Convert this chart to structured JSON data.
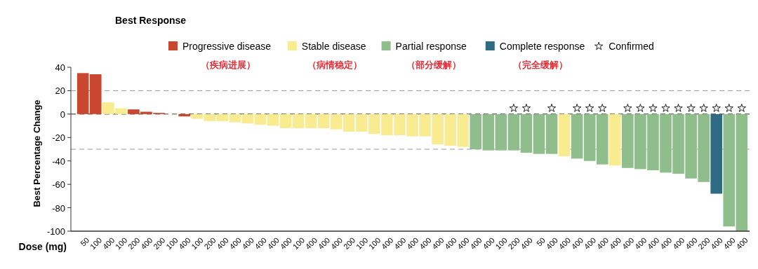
{
  "chart_data": {
    "type": "bar",
    "title": "Best Response",
    "xlabel": "Dose (mg)",
    "ylabel": "Best Percentage Change",
    "categories": [
      "50",
      "100",
      "400",
      "100",
      "200",
      "400",
      "200",
      "100",
      "400",
      "100",
      "200",
      "400",
      "400",
      "400",
      "400",
      "400",
      "400",
      "100",
      "400",
      "400",
      "400",
      "200",
      "100",
      "100",
      "400",
      "400",
      "400",
      "400",
      "400",
      "400",
      "400",
      "400",
      "400",
      "100",
      "200",
      "400",
      "50",
      "400",
      "400",
      "400",
      "400",
      "400",
      "400",
      "400",
      "400",
      "400",
      "400",
      "400",
      "400",
      "200",
      "400",
      "400",
      "400"
    ],
    "series": [
      {
        "name": "Progressive disease",
        "color": "#c9472f",
        "values": [
          35,
          34,
          null,
          null,
          4,
          2,
          1,
          null,
          -2,
          null,
          null,
          null,
          null,
          null,
          null,
          null,
          null,
          null,
          null,
          null,
          null,
          null,
          null,
          null,
          null,
          null,
          null,
          null,
          null,
          null,
          null,
          null,
          null,
          null,
          null,
          null,
          null,
          null,
          null,
          null,
          null,
          null,
          null,
          null,
          null,
          null,
          null,
          null,
          null,
          null,
          null,
          null,
          null
        ]
      },
      {
        "name": "Stable disease",
        "color": "#f9eb8f",
        "values": [
          null,
          null,
          10,
          5,
          null,
          null,
          null,
          0,
          null,
          -4,
          -6,
          -6,
          -7,
          -8,
          -9,
          -10,
          -12,
          -12,
          -12,
          -12,
          -13,
          -15,
          -15,
          -17,
          -18,
          -18,
          -19,
          -19,
          -26,
          -27,
          -28,
          null,
          null,
          null,
          null,
          null,
          null,
          null,
          -36,
          null,
          null,
          null,
          -44,
          null,
          null,
          null,
          null,
          null,
          null,
          null,
          null,
          null,
          null
        ]
      },
      {
        "name": "Partial response",
        "color": "#8fbe8c",
        "values": [
          null,
          null,
          null,
          null,
          null,
          null,
          null,
          null,
          null,
          null,
          null,
          null,
          null,
          null,
          null,
          null,
          null,
          null,
          null,
          null,
          null,
          null,
          null,
          null,
          null,
          null,
          null,
          null,
          null,
          null,
          null,
          -30,
          -31,
          -31,
          -31,
          -33,
          -34,
          -34,
          null,
          -38,
          -40,
          -43,
          null,
          -46,
          -47,
          -48,
          -50,
          -51,
          -55,
          -58,
          null,
          -96,
          -100
        ]
      },
      {
        "name": "Complete response",
        "color": "#2f6c84",
        "values": [
          null,
          null,
          null,
          null,
          null,
          null,
          null,
          null,
          null,
          null,
          null,
          null,
          null,
          null,
          null,
          null,
          null,
          null,
          null,
          null,
          null,
          null,
          null,
          null,
          null,
          null,
          null,
          null,
          null,
          null,
          null,
          null,
          null,
          null,
          null,
          null,
          null,
          null,
          null,
          null,
          null,
          null,
          null,
          null,
          null,
          null,
          null,
          null,
          null,
          null,
          -68,
          null,
          null
        ]
      },
      {
        "name": "Confirmed",
        "type": "scatter",
        "marker": "star",
        "color": "#222222",
        "values": [
          null,
          null,
          null,
          null,
          null,
          null,
          null,
          null,
          null,
          null,
          null,
          null,
          null,
          null,
          null,
          null,
          null,
          null,
          null,
          null,
          null,
          null,
          null,
          null,
          null,
          null,
          null,
          null,
          null,
          null,
          null,
          null,
          null,
          null,
          5,
          5,
          null,
          5,
          null,
          5,
          5,
          5,
          null,
          5,
          5,
          5,
          5,
          5,
          5,
          5,
          5,
          5,
          5
        ]
      }
    ],
    "ylim": [
      -100,
      40
    ],
    "yticks": [
      -100,
      -80,
      -60,
      -40,
      -20,
      0,
      20,
      40
    ],
    "ref_lines": [
      {
        "axis": "y",
        "value": 20,
        "color": "#999999",
        "line_style": "dashed"
      },
      {
        "axis": "y",
        "value": 0,
        "color": "#222222",
        "line_style": "dashed"
      },
      {
        "axis": "y",
        "value": -30,
        "color": "#999999",
        "line_style": "dashed"
      }
    ],
    "annotations": [
      "（疾病进展）",
      "（病情稳定）",
      "（部分缓解）",
      "（完全缓解）"
    ],
    "legend": "top"
  }
}
